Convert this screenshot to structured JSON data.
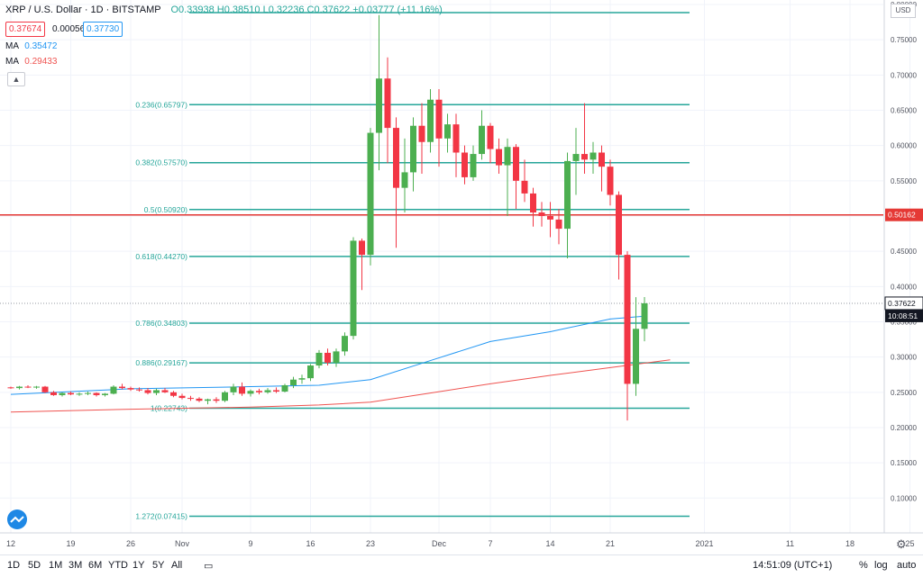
{
  "header": {
    "symbol": "XRP / U.S. Dollar · 1D · BITSTAMP",
    "ohlc": "O0.33938 H0.38510 L0.32236 C0.37622 +0.03777 (+11.16%)",
    "sell_price": "0.37674",
    "spread": "0.00056",
    "buy_price": "0.37730",
    "ma1_label": "MA",
    "ma1_value": "0.35472",
    "ma2_label": "MA",
    "ma2_value": "0.29433",
    "collapse_icon": "chevron-up-icon"
  },
  "colors": {
    "up": "#4caf50",
    "down": "#f23645",
    "fib": "#26a69a",
    "ma_blue": "#2196f3",
    "ma_red": "#ef5350",
    "hline": "#e53935",
    "grid": "#f0f3fa"
  },
  "chart_data": {
    "type": "candlestick",
    "y_axis": {
      "currency": "USD",
      "ticks": [
        "0.80000",
        "0.75000",
        "0.70000",
        "0.65000",
        "0.60000",
        "0.55000",
        "0.50000",
        "0.45000",
        "0.40000",
        "0.35000",
        "0.30000",
        "0.25000",
        "0.20000",
        "0.15000",
        "0.10000"
      ],
      "range": [
        0.05,
        0.8
      ]
    },
    "x_axis": {
      "ticks": [
        {
          "label": "12",
          "day": 0
        },
        {
          "label": "19",
          "day": 7
        },
        {
          "label": "26",
          "day": 14
        },
        {
          "label": "Nov",
          "day": 20
        },
        {
          "label": "9",
          "day": 28
        },
        {
          "label": "16",
          "day": 35
        },
        {
          "label": "23",
          "day": 42
        },
        {
          "label": "Dec",
          "day": 50
        },
        {
          "label": "7",
          "day": 56
        },
        {
          "label": "14",
          "day": 63
        },
        {
          "label": "21",
          "day": 70
        },
        {
          "label": "2021",
          "day": 81
        },
        {
          "label": "11",
          "day": 91
        },
        {
          "label": "18",
          "day": 98
        },
        {
          "label": "25",
          "day": 105
        }
      ]
    },
    "fib_levels": [
      {
        "label": "0.236(0.65797)",
        "price": 0.65797
      },
      {
        "label": "0.382(0.57570)",
        "price": 0.5757
      },
      {
        "label": "0.5(0.50920)",
        "price": 0.5092
      },
      {
        "label": "0.618(0.44270)",
        "price": 0.4427
      },
      {
        "label": "0.786(0.34803)",
        "price": 0.34803
      },
      {
        "label": "0.886(0.29167)",
        "price": 0.29167
      },
      {
        "label": "1(0.22743)",
        "price": 0.22743
      },
      {
        "label": "1.272(0.07415)",
        "price": 0.07415
      }
    ],
    "fib_top_price": 0.7885,
    "horizontal_line": {
      "price": 0.50162,
      "label": "0.50162"
    },
    "last_price": {
      "price": 0.37622,
      "label": "0.37622",
      "countdown": "10:08:51"
    },
    "candles": [
      [
        0.257,
        0.258,
        0.255,
        0.256
      ],
      [
        0.256,
        0.259,
        0.254,
        0.258
      ],
      [
        0.258,
        0.26,
        0.256,
        0.257
      ],
      [
        0.257,
        0.259,
        0.255,
        0.258
      ],
      [
        0.258,
        0.259,
        0.249,
        0.25
      ],
      [
        0.25,
        0.252,
        0.245,
        0.246
      ],
      [
        0.246,
        0.25,
        0.244,
        0.249
      ],
      [
        0.249,
        0.251,
        0.246,
        0.247
      ],
      [
        0.247,
        0.25,
        0.245,
        0.248
      ],
      [
        0.248,
        0.251,
        0.246,
        0.249
      ],
      [
        0.249,
        0.25,
        0.244,
        0.246
      ],
      [
        0.246,
        0.249,
        0.244,
        0.248
      ],
      [
        0.248,
        0.26,
        0.247,
        0.258
      ],
      [
        0.258,
        0.262,
        0.254,
        0.256
      ],
      [
        0.256,
        0.258,
        0.252,
        0.254
      ],
      [
        0.254,
        0.257,
        0.251,
        0.253
      ],
      [
        0.253,
        0.256,
        0.247,
        0.249
      ],
      [
        0.249,
        0.255,
        0.246,
        0.253
      ],
      [
        0.253,
        0.256,
        0.249,
        0.25
      ],
      [
        0.25,
        0.252,
        0.243,
        0.245
      ],
      [
        0.245,
        0.248,
        0.24,
        0.242
      ],
      [
        0.242,
        0.245,
        0.238,
        0.241
      ],
      [
        0.241,
        0.243,
        0.236,
        0.238
      ],
      [
        0.238,
        0.241,
        0.233,
        0.24
      ],
      [
        0.24,
        0.243,
        0.235,
        0.238
      ],
      [
        0.238,
        0.252,
        0.236,
        0.25
      ],
      [
        0.25,
        0.262,
        0.246,
        0.258
      ],
      [
        0.258,
        0.264,
        0.245,
        0.248
      ],
      [
        0.248,
        0.254,
        0.244,
        0.252
      ],
      [
        0.252,
        0.255,
        0.247,
        0.25
      ],
      [
        0.25,
        0.256,
        0.248,
        0.253
      ],
      [
        0.253,
        0.257,
        0.249,
        0.251
      ],
      [
        0.251,
        0.262,
        0.25,
        0.26
      ],
      [
        0.26,
        0.272,
        0.256,
        0.268
      ],
      [
        0.268,
        0.275,
        0.262,
        0.27
      ],
      [
        0.27,
        0.29,
        0.266,
        0.288
      ],
      [
        0.288,
        0.31,
        0.284,
        0.306
      ],
      [
        0.306,
        0.312,
        0.288,
        0.292
      ],
      [
        0.292,
        0.312,
        0.286,
        0.308
      ],
      [
        0.308,
        0.335,
        0.302,
        0.33
      ],
      [
        0.33,
        0.47,
        0.325,
        0.465
      ],
      [
        0.465,
        0.468,
        0.395,
        0.445
      ],
      [
        0.445,
        0.625,
        0.43,
        0.618
      ],
      [
        0.618,
        0.785,
        0.565,
        0.695
      ],
      [
        0.695,
        0.725,
        0.575,
        0.625
      ],
      [
        0.625,
        0.64,
        0.455,
        0.54
      ],
      [
        0.54,
        0.61,
        0.505,
        0.562
      ],
      [
        0.562,
        0.64,
        0.535,
        0.628
      ],
      [
        0.628,
        0.66,
        0.56,
        0.605
      ],
      [
        0.605,
        0.68,
        0.59,
        0.665
      ],
      [
        0.665,
        0.68,
        0.57,
        0.61
      ],
      [
        0.61,
        0.645,
        0.59,
        0.63
      ],
      [
        0.63,
        0.645,
        0.555,
        0.59
      ],
      [
        0.59,
        0.6,
        0.545,
        0.555
      ],
      [
        0.555,
        0.6,
        0.55,
        0.588
      ],
      [
        0.588,
        0.65,
        0.58,
        0.628
      ],
      [
        0.628,
        0.632,
        0.575,
        0.595
      ],
      [
        0.595,
        0.61,
        0.56,
        0.572
      ],
      [
        0.572,
        0.61,
        0.5,
        0.598
      ],
      [
        0.598,
        0.602,
        0.51,
        0.55
      ],
      [
        0.55,
        0.58,
        0.52,
        0.532
      ],
      [
        0.532,
        0.54,
        0.485,
        0.505
      ],
      [
        0.505,
        0.52,
        0.485,
        0.5
      ],
      [
        0.5,
        0.52,
        0.47,
        0.495
      ],
      [
        0.495,
        0.51,
        0.46,
        0.482
      ],
      [
        0.482,
        0.59,
        0.44,
        0.578
      ],
      [
        0.578,
        0.625,
        0.53,
        0.588
      ],
      [
        0.588,
        0.66,
        0.56,
        0.58
      ],
      [
        0.58,
        0.605,
        0.56,
        0.59
      ],
      [
        0.59,
        0.6,
        0.535,
        0.57
      ],
      [
        0.57,
        0.58,
        0.515,
        0.53
      ],
      [
        0.53,
        0.535,
        0.41,
        0.445
      ],
      [
        0.445,
        0.45,
        0.21,
        0.262
      ],
      [
        0.262,
        0.385,
        0.245,
        0.34
      ],
      [
        0.34,
        0.3851,
        0.32236,
        0.37622
      ]
    ],
    "ma_long": [
      [
        0,
        0.222
      ],
      [
        14,
        0.226
      ],
      [
        28,
        0.229
      ],
      [
        36,
        0.232
      ],
      [
        42,
        0.236
      ],
      [
        49,
        0.249
      ],
      [
        56,
        0.262
      ],
      [
        63,
        0.274
      ],
      [
        70,
        0.285
      ],
      [
        77,
        0.296
      ]
    ],
    "ma_short": [
      [
        0,
        0.247
      ],
      [
        14,
        0.255
      ],
      [
        28,
        0.258
      ],
      [
        36,
        0.26
      ],
      [
        42,
        0.268
      ],
      [
        49,
        0.295
      ],
      [
        56,
        0.322
      ],
      [
        63,
        0.336
      ],
      [
        70,
        0.354
      ],
      [
        74,
        0.358
      ]
    ]
  },
  "timeframes": [
    "1D",
    "5D",
    "1M",
    "3M",
    "6M",
    "YTD",
    "1Y",
    "5Y",
    "All"
  ],
  "footer": {
    "time": "14:51:09 (UTC+1)",
    "percent": "%",
    "log": "log",
    "auto": "auto"
  }
}
